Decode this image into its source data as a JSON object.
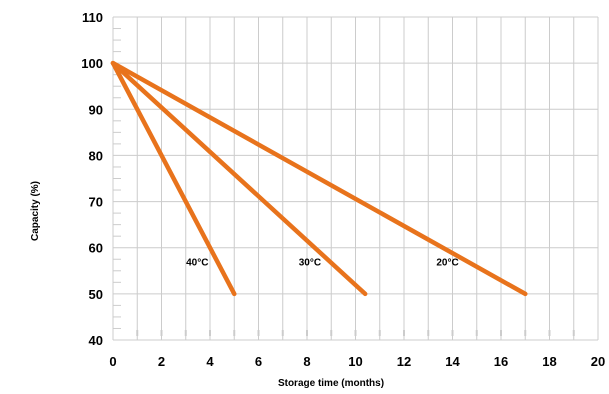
{
  "chart_data": {
    "type": "line",
    "title": "",
    "xlabel": "Storage time (months)",
    "ylabel": "Capacity (%)",
    "xlim": [
      0,
      20
    ],
    "ylim": [
      40,
      110
    ],
    "xticks": [
      0,
      2,
      4,
      6,
      8,
      10,
      12,
      14,
      16,
      18,
      20
    ],
    "yticks": [
      40,
      50,
      60,
      70,
      80,
      90,
      100,
      110
    ],
    "grid": true,
    "legend": "none",
    "line_color": "#e8731c",
    "grid_color": "#cccccc",
    "series": [
      {
        "name": "40°C",
        "x": [
          0,
          5
        ],
        "y": [
          100,
          50
        ]
      },
      {
        "name": "30°C",
        "x": [
          0,
          10.4
        ],
        "y": [
          100,
          50
        ]
      },
      {
        "name": "20°C",
        "x": [
          0,
          17
        ],
        "y": [
          100,
          50
        ]
      }
    ]
  }
}
